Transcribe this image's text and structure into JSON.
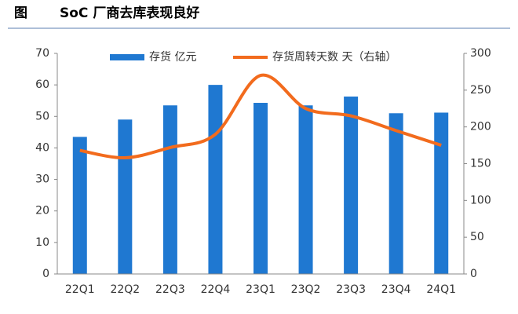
{
  "chart_data": {
    "type": "bar_line",
    "label": "图",
    "title": "SoC 厂商去库表现良好",
    "categories": [
      "22Q1",
      "22Q2",
      "22Q3",
      "22Q4",
      "23Q1",
      "23Q2",
      "23Q3",
      "23Q4",
      "24Q1"
    ],
    "series": [
      {
        "name": "存货 亿元",
        "type": "bar",
        "color": "#1f78d1",
        "values": [
          43.5,
          49,
          53.5,
          60,
          54.3,
          53.5,
          56.3,
          51,
          51.2
        ]
      },
      {
        "name": "存货周转天数 天（右轴）",
        "type": "line",
        "axis": "y2",
        "color": "#f26b1d",
        "values": [
          168,
          158,
          172,
          190,
          270,
          225,
          215,
          195,
          175
        ]
      }
    ],
    "ylim": [
      0,
      70
    ],
    "yticks": [
      0,
      10,
      20,
      30,
      40,
      50,
      60,
      70
    ],
    "y2lim": [
      0,
      300
    ],
    "y2ticks": [
      0,
      50,
      100,
      150,
      200,
      250,
      300
    ]
  }
}
